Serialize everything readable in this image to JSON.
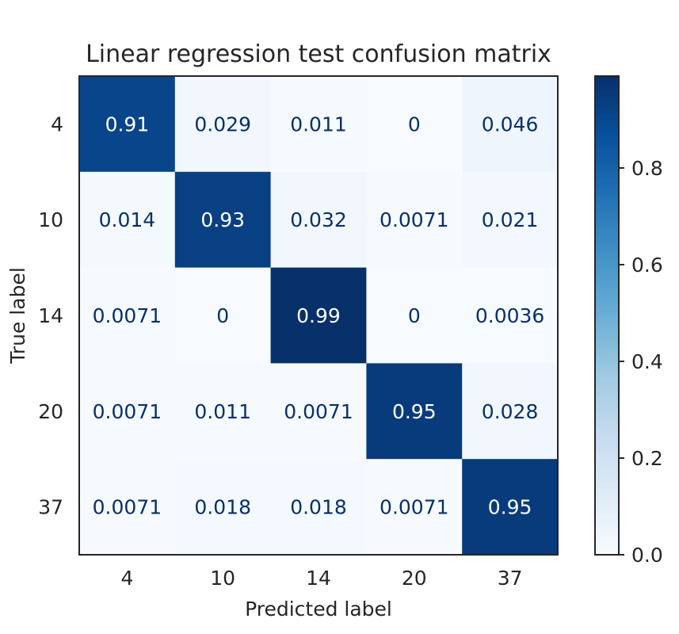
{
  "chart_data": {
    "type": "heatmap",
    "title": "Linear regression test confusion matrix",
    "xlabel": "Predicted label",
    "ylabel": "True label",
    "x_categories": [
      "4",
      "10",
      "14",
      "20",
      "37"
    ],
    "y_categories": [
      "4",
      "10",
      "14",
      "20",
      "37"
    ],
    "values": [
      [
        0.91,
        0.029,
        0.011,
        0,
        0.046
      ],
      [
        0.014,
        0.93,
        0.032,
        0.0071,
        0.021
      ],
      [
        0.0071,
        0,
        0.99,
        0,
        0.0036
      ],
      [
        0.0071,
        0.011,
        0.0071,
        0.95,
        0.028
      ],
      [
        0.0071,
        0.018,
        0.018,
        0.0071,
        0.95
      ]
    ],
    "cell_labels": [
      [
        "0.91",
        "0.029",
        "0.011",
        "0",
        "0.046"
      ],
      [
        "0.014",
        "0.93",
        "0.032",
        "0.0071",
        "0.021"
      ],
      [
        "0.0071",
        "0",
        "0.99",
        "0",
        "0.0036"
      ],
      [
        "0.0071",
        "0.011",
        "0.0071",
        "0.95",
        "0.028"
      ],
      [
        "0.0071",
        "0.018",
        "0.018",
        "0.0071",
        "0.95"
      ]
    ],
    "colormap": "Blues",
    "colorbar": {
      "range": [
        0,
        0.99
      ],
      "ticks": [
        0.0,
        0.2,
        0.4,
        0.6,
        0.8
      ],
      "tick_labels": [
        "0.0",
        "0.2",
        "0.4",
        "0.6",
        "0.8"
      ]
    },
    "grid": false
  }
}
